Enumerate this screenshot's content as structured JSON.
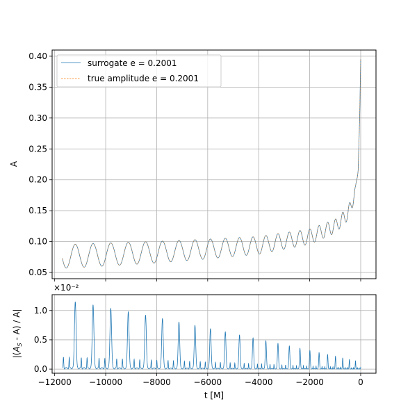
{
  "chart_data": [
    {
      "type": "line",
      "title": "",
      "xlabel": "",
      "ylabel": "A",
      "xlim": [
        -12100,
        600
      ],
      "ylim": [
        0.04,
        0.41
      ],
      "xticks": [
        -12000,
        -10000,
        -8000,
        -6000,
        -4000,
        -2000,
        0
      ],
      "yticks": [
        0.05,
        0.1,
        0.15,
        0.2,
        0.25,
        0.3,
        0.35,
        0.4
      ],
      "ytick_labels": [
        "0.05",
        "0.10",
        "0.15",
        "0.20",
        "0.25",
        "0.30",
        "0.35",
        "0.40"
      ],
      "grid": true,
      "legend_position": "upper-left",
      "series": [
        {
          "name": "surrogate e = 0.2001",
          "color": "#1f77b4",
          "style": "solid"
        },
        {
          "name": "true amplitude e = 0.2001",
          "color": "#ff7f0e",
          "style": "dashed"
        }
      ],
      "model": {
        "t_start": -11700,
        "t_end": 0,
        "t_chirp": 2000,
        "chirp_power": 0.25,
        "base_mean_start": 0.076,
        "envelope_shape": [
          [
            -11600,
            0.076
          ],
          [
            -8000,
            0.083
          ],
          [
            -6000,
            0.088
          ],
          [
            -4000,
            0.094
          ],
          [
            -2000,
            0.108
          ],
          [
            -1000,
            0.125
          ],
          [
            -500,
            0.145
          ],
          [
            -200,
            0.18
          ],
          [
            -100,
            0.22
          ],
          [
            -40,
            0.3
          ],
          [
            0,
            0.395
          ]
        ],
        "osc_amp_start": 0.019,
        "osc_amp_end": 0.01,
        "osc_period_start": 700,
        "osc_period_end": 210
      }
    },
    {
      "type": "line",
      "title": "",
      "xlabel": "t [M]",
      "ylabel": "|(A_S - A) / A|",
      "offset_text": "×10⁻²",
      "xlim": [
        -12100,
        600
      ],
      "ylim": [
        -0.07,
        1.27
      ],
      "xticks": [
        -12000,
        -10000,
        -8000,
        -6000,
        -4000,
        -2000,
        0
      ],
      "xtick_labels": [
        "−12000",
        "−10000",
        "−8000",
        "−6000",
        "−4000",
        "−2000",
        "0"
      ],
      "yticks": [
        0.0,
        0.5,
        1.0
      ],
      "ytick_labels": [
        "0.0",
        "0.5",
        "1.0"
      ],
      "grid": true,
      "series": [
        {
          "name": "",
          "color": "#1f77b4",
          "style": "solid"
        }
      ],
      "model": {
        "peak_start": 1.18,
        "peak_end": 0.12,
        "secondary_ratio": 0.42
      }
    }
  ]
}
